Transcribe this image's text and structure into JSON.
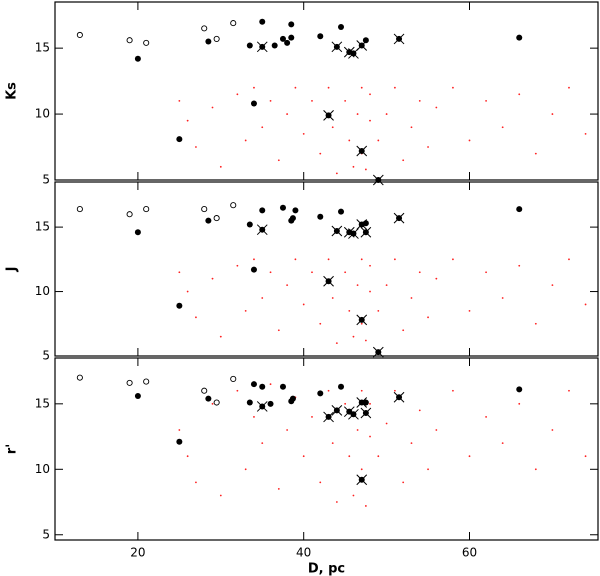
{
  "chart_data": [
    {
      "type": "scatter",
      "ylabel": "Ks",
      "xlim": [
        10,
        75.5
      ],
      "ylim": [
        5,
        18.5
      ],
      "xticks": [
        20,
        40,
        60
      ],
      "yticks": [
        5,
        10,
        15
      ],
      "series": [
        {
          "marker": "dot",
          "color": "#ff2020",
          "x": [
            25,
            26,
            27,
            29,
            30,
            32,
            33,
            34,
            35,
            36,
            37,
            38,
            39,
            40,
            41,
            42,
            43,
            43.5,
            44,
            45,
            45.5,
            46,
            46.5,
            47,
            47,
            47.5,
            48,
            48,
            49,
            50,
            51,
            52,
            53,
            54,
            55,
            56,
            58,
            60,
            62,
            64,
            66,
            68,
            70,
            72,
            74
          ],
          "values": [
            11,
            9.5,
            7.5,
            10.5,
            6,
            11.5,
            8,
            12,
            9,
            11,
            6.5,
            10,
            12,
            8.5,
            11,
            7,
            12,
            9,
            5.5,
            11,
            8,
            6,
            10,
            12,
            7,
            5.8,
            9.5,
            11.5,
            8,
            10,
            12,
            6.5,
            9,
            11,
            7.5,
            10.5,
            12,
            8,
            11,
            9,
            11.5,
            7,
            10,
            12,
            8.5
          ]
        },
        {
          "marker": "open",
          "color": "#000000",
          "x": [
            13,
            19,
            21,
            28,
            29.5,
            31.5
          ],
          "values": [
            16,
            15.6,
            15.4,
            16.5,
            15.7,
            16.9
          ]
        },
        {
          "marker": "filled",
          "color": "#000000",
          "x": [
            20,
            28.5,
            33.5,
            35,
            36.5,
            37.5,
            38,
            38.5,
            38.5,
            42,
            44.5,
            47.5,
            66,
            34,
            25
          ],
          "values": [
            14.2,
            15.5,
            15.2,
            17,
            15.2,
            15.7,
            15.4,
            16.8,
            15.8,
            15.9,
            16.6,
            15.6,
            15.8,
            10.8,
            8.1
          ]
        },
        {
          "marker": "crossed",
          "color": "#000000",
          "x": [
            35,
            44,
            45.5,
            46,
            47,
            51.5,
            43,
            47,
            49
          ],
          "values": [
            15.1,
            15.1,
            14.7,
            14.6,
            15.2,
            15.7,
            9.9,
            7.2,
            5
          ]
        }
      ]
    },
    {
      "type": "scatter",
      "ylabel": "J",
      "xlim": [
        10,
        75.5
      ],
      "ylim": [
        5,
        18.5
      ],
      "xticks": [
        20,
        40,
        60
      ],
      "yticks": [
        5,
        10,
        15
      ],
      "series": [
        {
          "marker": "dot",
          "color": "#ff2020",
          "x": [
            25,
            26,
            27,
            29,
            30,
            32,
            33,
            34,
            35,
            36,
            37,
            38,
            39,
            40,
            41,
            42,
            43,
            43.5,
            44,
            45,
            45.5,
            46,
            46.5,
            47,
            47,
            47.5,
            48,
            48,
            49,
            50,
            51,
            52,
            53,
            54,
            55,
            56,
            58,
            60,
            62,
            64,
            66,
            68,
            70,
            72,
            74
          ],
          "values": [
            11.5,
            10,
            8,
            11,
            6.5,
            12,
            8.5,
            12.5,
            9.5,
            11.5,
            7,
            10.5,
            12.5,
            9,
            11.5,
            7.5,
            12.5,
            9.5,
            6,
            11.5,
            8.5,
            6.5,
            10.5,
            12.5,
            7.5,
            6.2,
            10,
            12,
            8.5,
            10.5,
            12.5,
            7,
            9.5,
            11.5,
            8,
            11,
            12.5,
            8.5,
            11.5,
            9.5,
            12,
            7.5,
            10.5,
            12.5,
            9
          ]
        },
        {
          "marker": "open",
          "color": "#000000",
          "x": [
            13,
            19,
            21,
            28,
            29.5,
            31.5
          ],
          "values": [
            16.4,
            16,
            16.4,
            16.4,
            15.7,
            16.7
          ]
        },
        {
          "marker": "filled",
          "color": "#000000",
          "x": [
            20,
            28.5,
            33.5,
            35,
            37.5,
            38.5,
            38.7,
            39,
            42,
            44.5,
            47.5,
            66,
            34,
            25
          ],
          "values": [
            14.6,
            15.5,
            15.2,
            16.3,
            16.5,
            15.5,
            15.7,
            16.3,
            15.8,
            16.2,
            15.3,
            16.4,
            11.7,
            8.9
          ]
        },
        {
          "marker": "crossed",
          "color": "#000000",
          "x": [
            35,
            44,
            45.5,
            46,
            47,
            47.5,
            51.5,
            43,
            47,
            49
          ],
          "values": [
            14.8,
            14.7,
            14.6,
            14.5,
            15.2,
            14.6,
            15.7,
            10.8,
            7.8,
            5.3
          ]
        }
      ]
    },
    {
      "type": "scatter",
      "ylabel": "r'",
      "xlabel": "D, pc",
      "xlim": [
        10,
        75.5
      ],
      "ylim": [
        4.6,
        18.5
      ],
      "xticks": [
        20,
        40,
        60
      ],
      "yticks": [
        5,
        10,
        15
      ],
      "series": [
        {
          "marker": "dot",
          "color": "#ff2020",
          "x": [
            25,
            26,
            27,
            29,
            30,
            32,
            33,
            34,
            35,
            36,
            37,
            38,
            39,
            40,
            41,
            42,
            43,
            43.5,
            44,
            45,
            45.5,
            46,
            46.5,
            47,
            47,
            47.5,
            48,
            48,
            49,
            50,
            51,
            52,
            53,
            54,
            55,
            56,
            58,
            60,
            62,
            64,
            66,
            68,
            70,
            72,
            74
          ],
          "values": [
            13,
            11,
            9,
            15,
            8,
            16,
            10,
            14,
            12,
            16.5,
            8.5,
            13,
            15.5,
            11,
            14,
            9,
            16,
            12,
            7.5,
            15,
            11,
            8,
            13,
            16,
            10,
            7.2,
            12.5,
            15,
            11,
            13.5,
            16,
            9,
            12,
            14.5,
            10,
            13,
            16,
            11,
            14,
            12,
            15,
            10,
            13,
            16,
            11
          ]
        },
        {
          "marker": "open",
          "color": "#000000",
          "x": [
            13,
            19,
            21,
            28,
            29.5,
            31.5
          ],
          "values": [
            17,
            16.6,
            16.7,
            16,
            15.1,
            16.9
          ]
        },
        {
          "marker": "filled",
          "color": "#000000",
          "x": [
            20,
            28.5,
            33.5,
            34,
            35,
            37.5,
            38.5,
            38.7,
            42,
            44.5,
            47.5,
            66,
            36,
            25
          ],
          "values": [
            15.6,
            15.4,
            15.1,
            16.5,
            16.3,
            16.3,
            15.2,
            15.4,
            15.8,
            16.3,
            15.1,
            16.1,
            15,
            12.1
          ]
        },
        {
          "marker": "crossed",
          "color": "#000000",
          "x": [
            35,
            43,
            44,
            45.5,
            46,
            47,
            47.5,
            51.5,
            47
          ],
          "values": [
            14.8,
            14,
            14.5,
            14.4,
            14.2,
            15.1,
            14.3,
            15.5,
            9.2
          ]
        }
      ]
    }
  ]
}
